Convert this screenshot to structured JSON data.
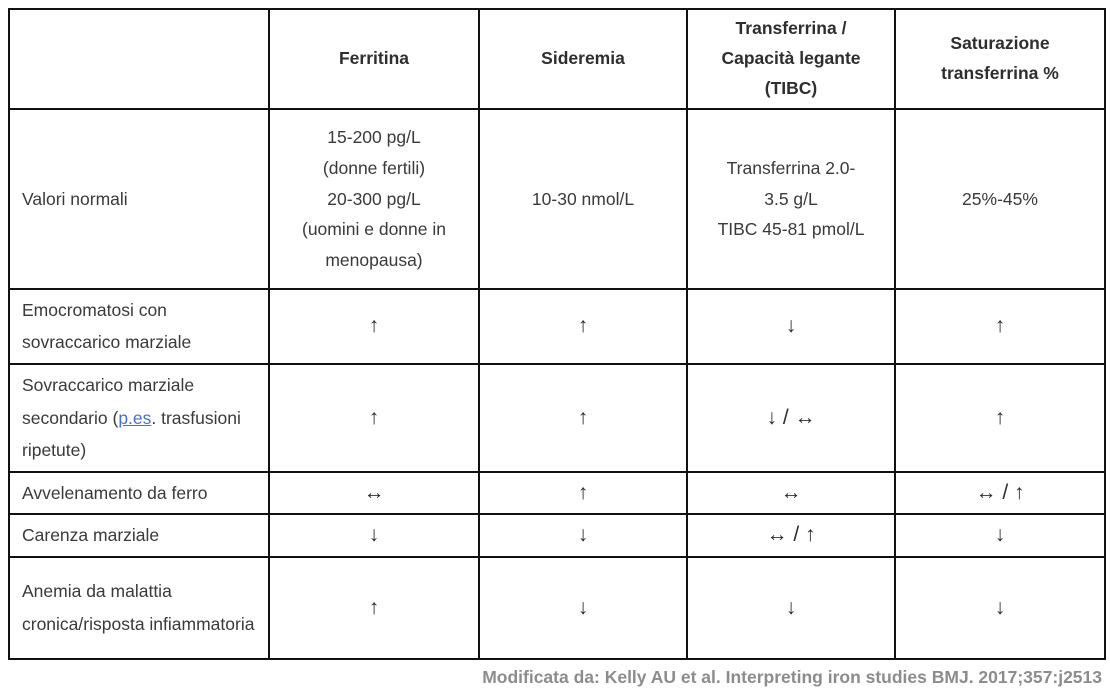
{
  "colors": {
    "link": "#4472C4",
    "footer_text": "#8C8C8C",
    "border": "#111111",
    "text": "#333333"
  },
  "table": {
    "header": [
      "",
      "Ferritina",
      "Sideremia",
      "Transferrina /\nCapacità legante\n(TIBC)",
      "Saturazione\ntransferrina %"
    ],
    "rows": [
      {
        "label": "Valori normali",
        "cells": [
          "15-200 pg/L\n(donne fertili)\n20-300 pg/L\n(uomini e donne in menopausa)",
          "10-30 nmol/L",
          "Transferrina 2.0-\n3.5 g/L\nTIBC 45-81 pmol/L",
          "25%-45%"
        ]
      },
      {
        "label": "Emocromatosi con sovraccarico marziale",
        "cells": [
          "↑",
          "↑",
          "↓",
          "↑"
        ]
      },
      {
        "label_pre": "Sovraccarico marziale secondario (",
        "link_text": "p.es",
        "label_post": ". trasfusioni ripetute)",
        "cells": [
          "↑",
          "↑",
          "↓ / ↔",
          "↑"
        ]
      },
      {
        "label": "Avvelenamento da ferro",
        "cells": [
          "↔",
          "↑",
          "↔",
          "↔ / ↑"
        ]
      },
      {
        "label": "Carenza marziale",
        "cells": [
          "↓",
          "↓",
          "↔ / ↑",
          "↓"
        ]
      },
      {
        "label": "Anemia da malattia cronica/risposta infiammatoria",
        "cells": [
          "↑",
          "↓",
          "↓",
          "↓"
        ]
      }
    ]
  },
  "footer": {
    "citation": "Modificata da: Kelly AU et al. Interpreting iron studies BMJ. 2017;357:j2513"
  }
}
